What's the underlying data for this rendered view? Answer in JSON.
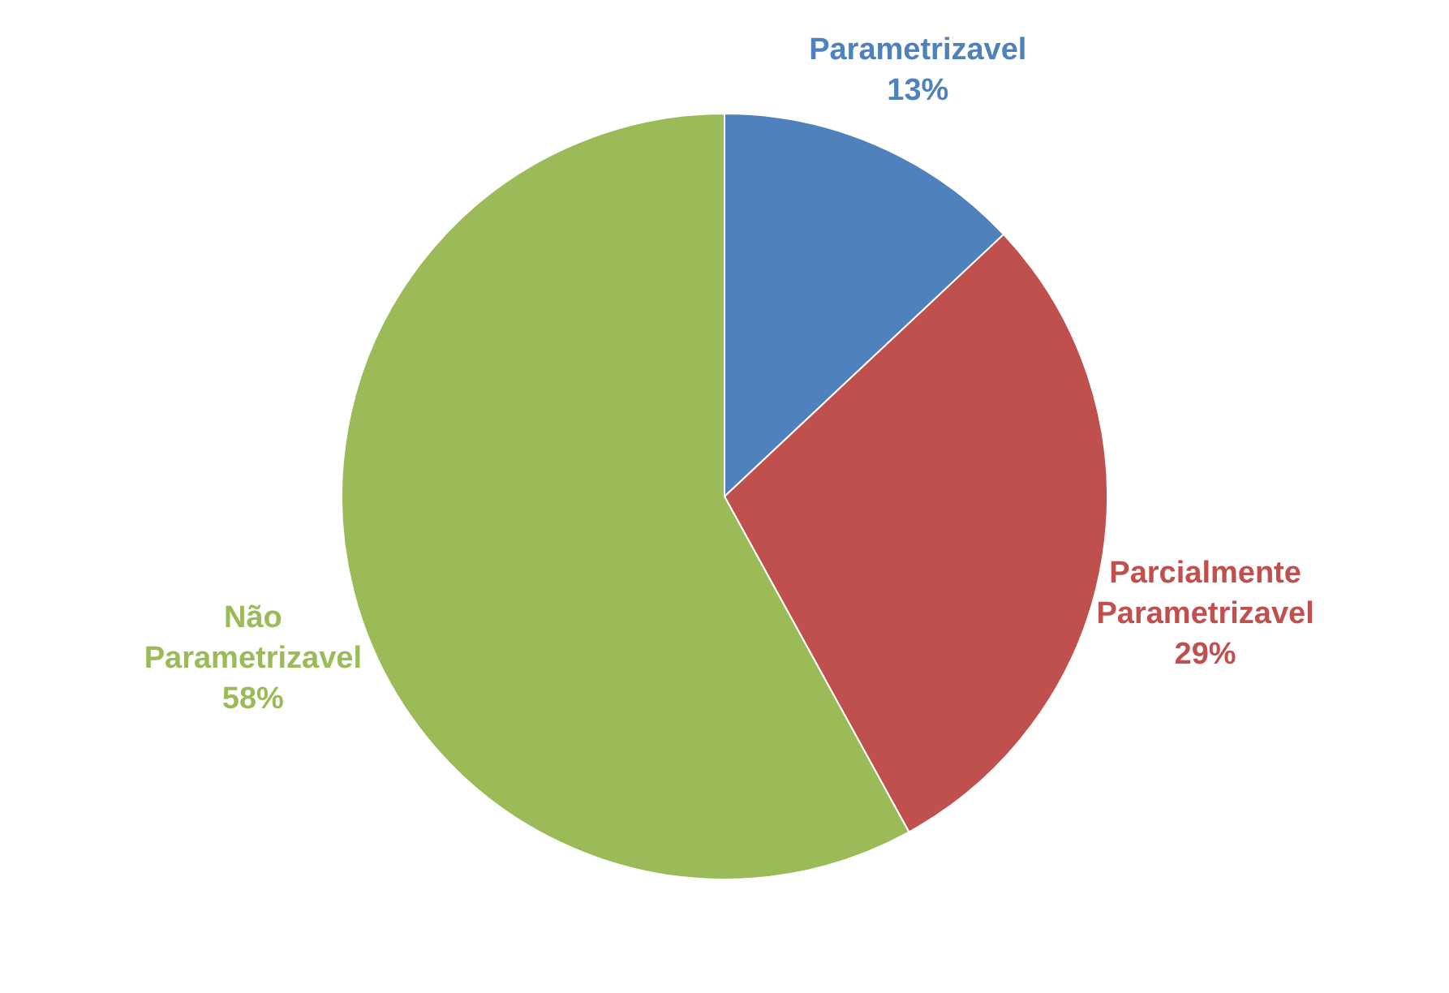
{
  "chart_data": {
    "type": "pie",
    "categories": [
      "Parametrizavel",
      "Parcialmente Parametrizavel",
      "Não Parametrizavel"
    ],
    "values": [
      13,
      29,
      58
    ],
    "value_labels": [
      "13%",
      "29%",
      "58%"
    ],
    "colors": [
      "#4f81bd",
      "#c0504d",
      "#9bbb59"
    ]
  }
}
